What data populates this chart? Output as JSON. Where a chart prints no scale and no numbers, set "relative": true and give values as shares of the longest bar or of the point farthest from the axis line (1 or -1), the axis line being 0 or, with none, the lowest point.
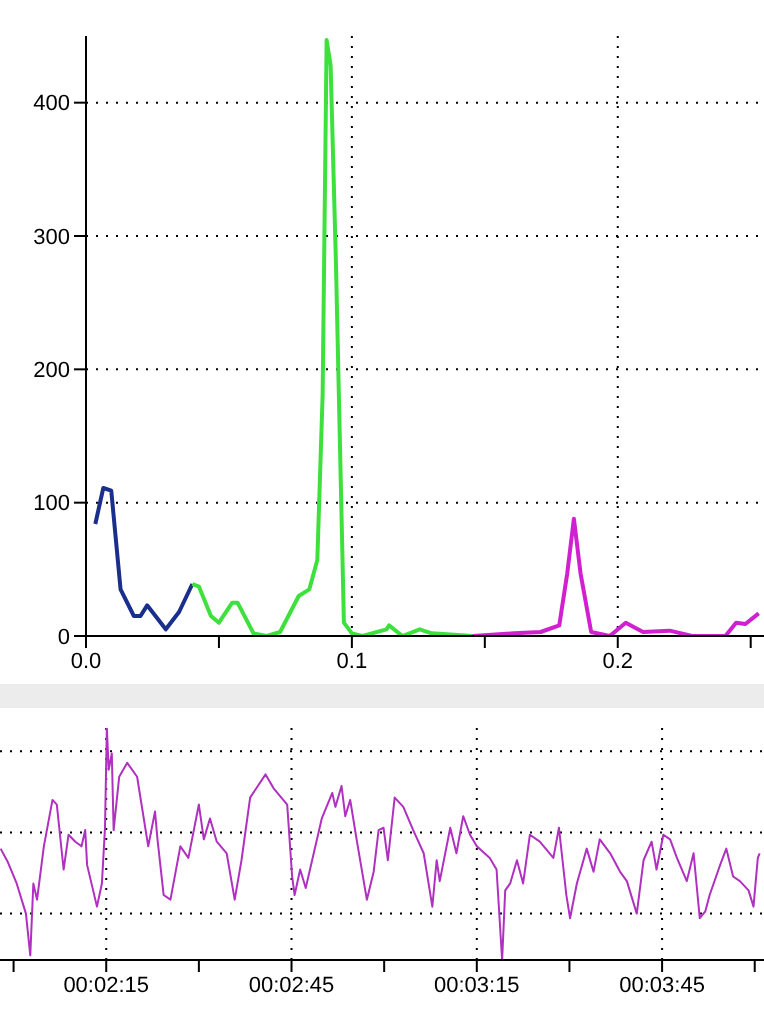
{
  "chart_data": [
    {
      "type": "line",
      "xlim": [
        0,
        0.255
      ],
      "ylim": [
        0,
        450
      ],
      "xticks": [
        {
          "value": 0,
          "label": "0.0"
        },
        {
          "value": 0.05,
          "label": null
        },
        0.1,
        {
          "value": 0.15,
          "label": null
        },
        0.2,
        {
          "value": 0.25,
          "label": null
        }
      ],
      "yticks": [
        0,
        100,
        200,
        300,
        400
      ],
      "grid": true,
      "line_style": "solid",
      "series": [
        {
          "color": "#1a2e8c",
          "x": [
            0.0035,
            0.0065,
            0.0095,
            0.013,
            0.018,
            0.0205,
            0.023,
            0.03,
            0.035,
            0.04
          ],
          "values": [
            84,
            111,
            109,
            35,
            15,
            15,
            23,
            5,
            18,
            39
          ]
        },
        {
          "color": "#3ee03e",
          "x": [
            0.04,
            0.0425,
            0.047,
            0.05,
            0.055,
            0.057,
            0.063,
            0.068,
            0.073,
            0.08,
            0.084,
            0.087,
            0.089,
            0.0905,
            0.092,
            0.094,
            0.097,
            0.1,
            0.104,
            0.113,
            0.114,
            0.119,
            0.1255,
            0.13,
            0.1455
          ],
          "values": [
            39,
            37,
            15,
            10,
            25,
            25,
            2,
            0,
            3,
            30,
            35,
            57,
            181,
            447,
            428,
            280,
            10,
            2,
            0,
            5,
            8,
            0,
            5,
            2,
            0
          ]
        },
        {
          "color": "#d020d0",
          "x": [
            0.1455,
            0.161,
            0.171,
            0.178,
            0.181,
            0.1835,
            0.186,
            0.19,
            0.197,
            0.203,
            0.2095,
            0.2195,
            0.228,
            0.2405,
            0.2445,
            0.248,
            0.253
          ],
          "values": [
            0,
            2,
            3,
            8,
            47,
            88,
            47,
            3,
            0,
            10,
            3,
            4,
            0,
            0,
            10,
            9,
            17
          ]
        }
      ]
    },
    {
      "type": "line",
      "relative": true,
      "xlim": [
        117.8,
        241.5
      ],
      "xticks": [
        {
          "value": 120,
          "label": null
        },
        {
          "value": 135,
          "label": "00:02:15"
        },
        {
          "value": 150,
          "label": null
        },
        {
          "value": 165,
          "label": "00:02:45"
        },
        {
          "value": 180,
          "label": null
        },
        {
          "value": 195,
          "label": "00:03:15"
        },
        {
          "value": 210,
          "label": null
        },
        {
          "value": 225,
          "label": "00:03:45"
        },
        {
          "value": 240,
          "label": null
        }
      ],
      "grid": true,
      "line_style": "solid",
      "series": [
        {
          "color": "#b030c0",
          "x": [
            117.9,
            119.1,
            120.5,
            122.0,
            122.7,
            123.2,
            123.8,
            124.9,
            126.3,
            127.0,
            128.1,
            128.9,
            130.0,
            131.0,
            131.6,
            131.9,
            133.5,
            134.3,
            134.8,
            135.1,
            135.4,
            135.9,
            136.2,
            137.1,
            138.4,
            140.0,
            141.8,
            142.9,
            143.3,
            144.3,
            145.4,
            147.0,
            148.3,
            150.0,
            150.8,
            151.8,
            152.9,
            154.5,
            155.8,
            156.9,
            158.3,
            160.8,
            162.1,
            164.3,
            165.1,
            165.5,
            166.4,
            167.3,
            168.6,
            169.9,
            171.6,
            172.1,
            173.1,
            173.7,
            174.5,
            175.6,
            177.2,
            178.3,
            179.1,
            179.9,
            180.6,
            181.7,
            183.1,
            184.7,
            186.4,
            187.8,
            188.5,
            189.0,
            190.7,
            191.7,
            192.8,
            193.9,
            195.0,
            197.1,
            198.2,
            199.1,
            199.6,
            200.4,
            201.5,
            202.5,
            203.6,
            205.2,
            207.4,
            208.3,
            209.5,
            210.1,
            211.2,
            212.8,
            213.9,
            214.9,
            216.6,
            218.2,
            219.3,
            220.9,
            222.0,
            223.3,
            224.1,
            225.2,
            226.3,
            227.4,
            229.0,
            230.1,
            231.1,
            232.0,
            232.7,
            234.4,
            235.4,
            236.5,
            237.6,
            239.0,
            239.8,
            240.5,
            240.8
          ],
          "values": [
            0.48,
            0.42,
            0.33,
            0.2,
            0.02,
            0.33,
            0.26,
            0.49,
            0.69,
            0.67,
            0.39,
            0.54,
            0.51,
            0.49,
            0.56,
            0.41,
            0.23,
            0.33,
            0.57,
            1,
            0.82,
            0.89,
            0.56,
            0.79,
            0.85,
            0.79,
            0.49,
            0.64,
            0.52,
            0.28,
            0.26,
            0.49,
            0.44,
            0.67,
            0.52,
            0.61,
            0.51,
            0.46,
            0.26,
            0.43,
            0.7,
            0.8,
            0.74,
            0.67,
            0.36,
            0.28,
            0.39,
            0.31,
            0.46,
            0.61,
            0.72,
            0.66,
            0.75,
            0.62,
            0.69,
            0.51,
            0.26,
            0.38,
            0.56,
            0.57,
            0.43,
            0.7,
            0.66,
            0.56,
            0.46,
            0.23,
            0.43,
            0.34,
            0.57,
            0.46,
            0.62,
            0.54,
            0.49,
            0.44,
            0.39,
            0,
            0.3,
            0.33,
            0.43,
            0.33,
            0.54,
            0.51,
            0.44,
            0.57,
            0.28,
            0.18,
            0.33,
            0.48,
            0.38,
            0.52,
            0.46,
            0.38,
            0.34,
            0.2,
            0.43,
            0.51,
            0.39,
            0.54,
            0.52,
            0.44,
            0.34,
            0.46,
            0.18,
            0.21,
            0.28,
            0.41,
            0.48,
            0.36,
            0.34,
            0.3,
            0.23,
            0.44,
            0.46
          ]
        }
      ]
    }
  ]
}
